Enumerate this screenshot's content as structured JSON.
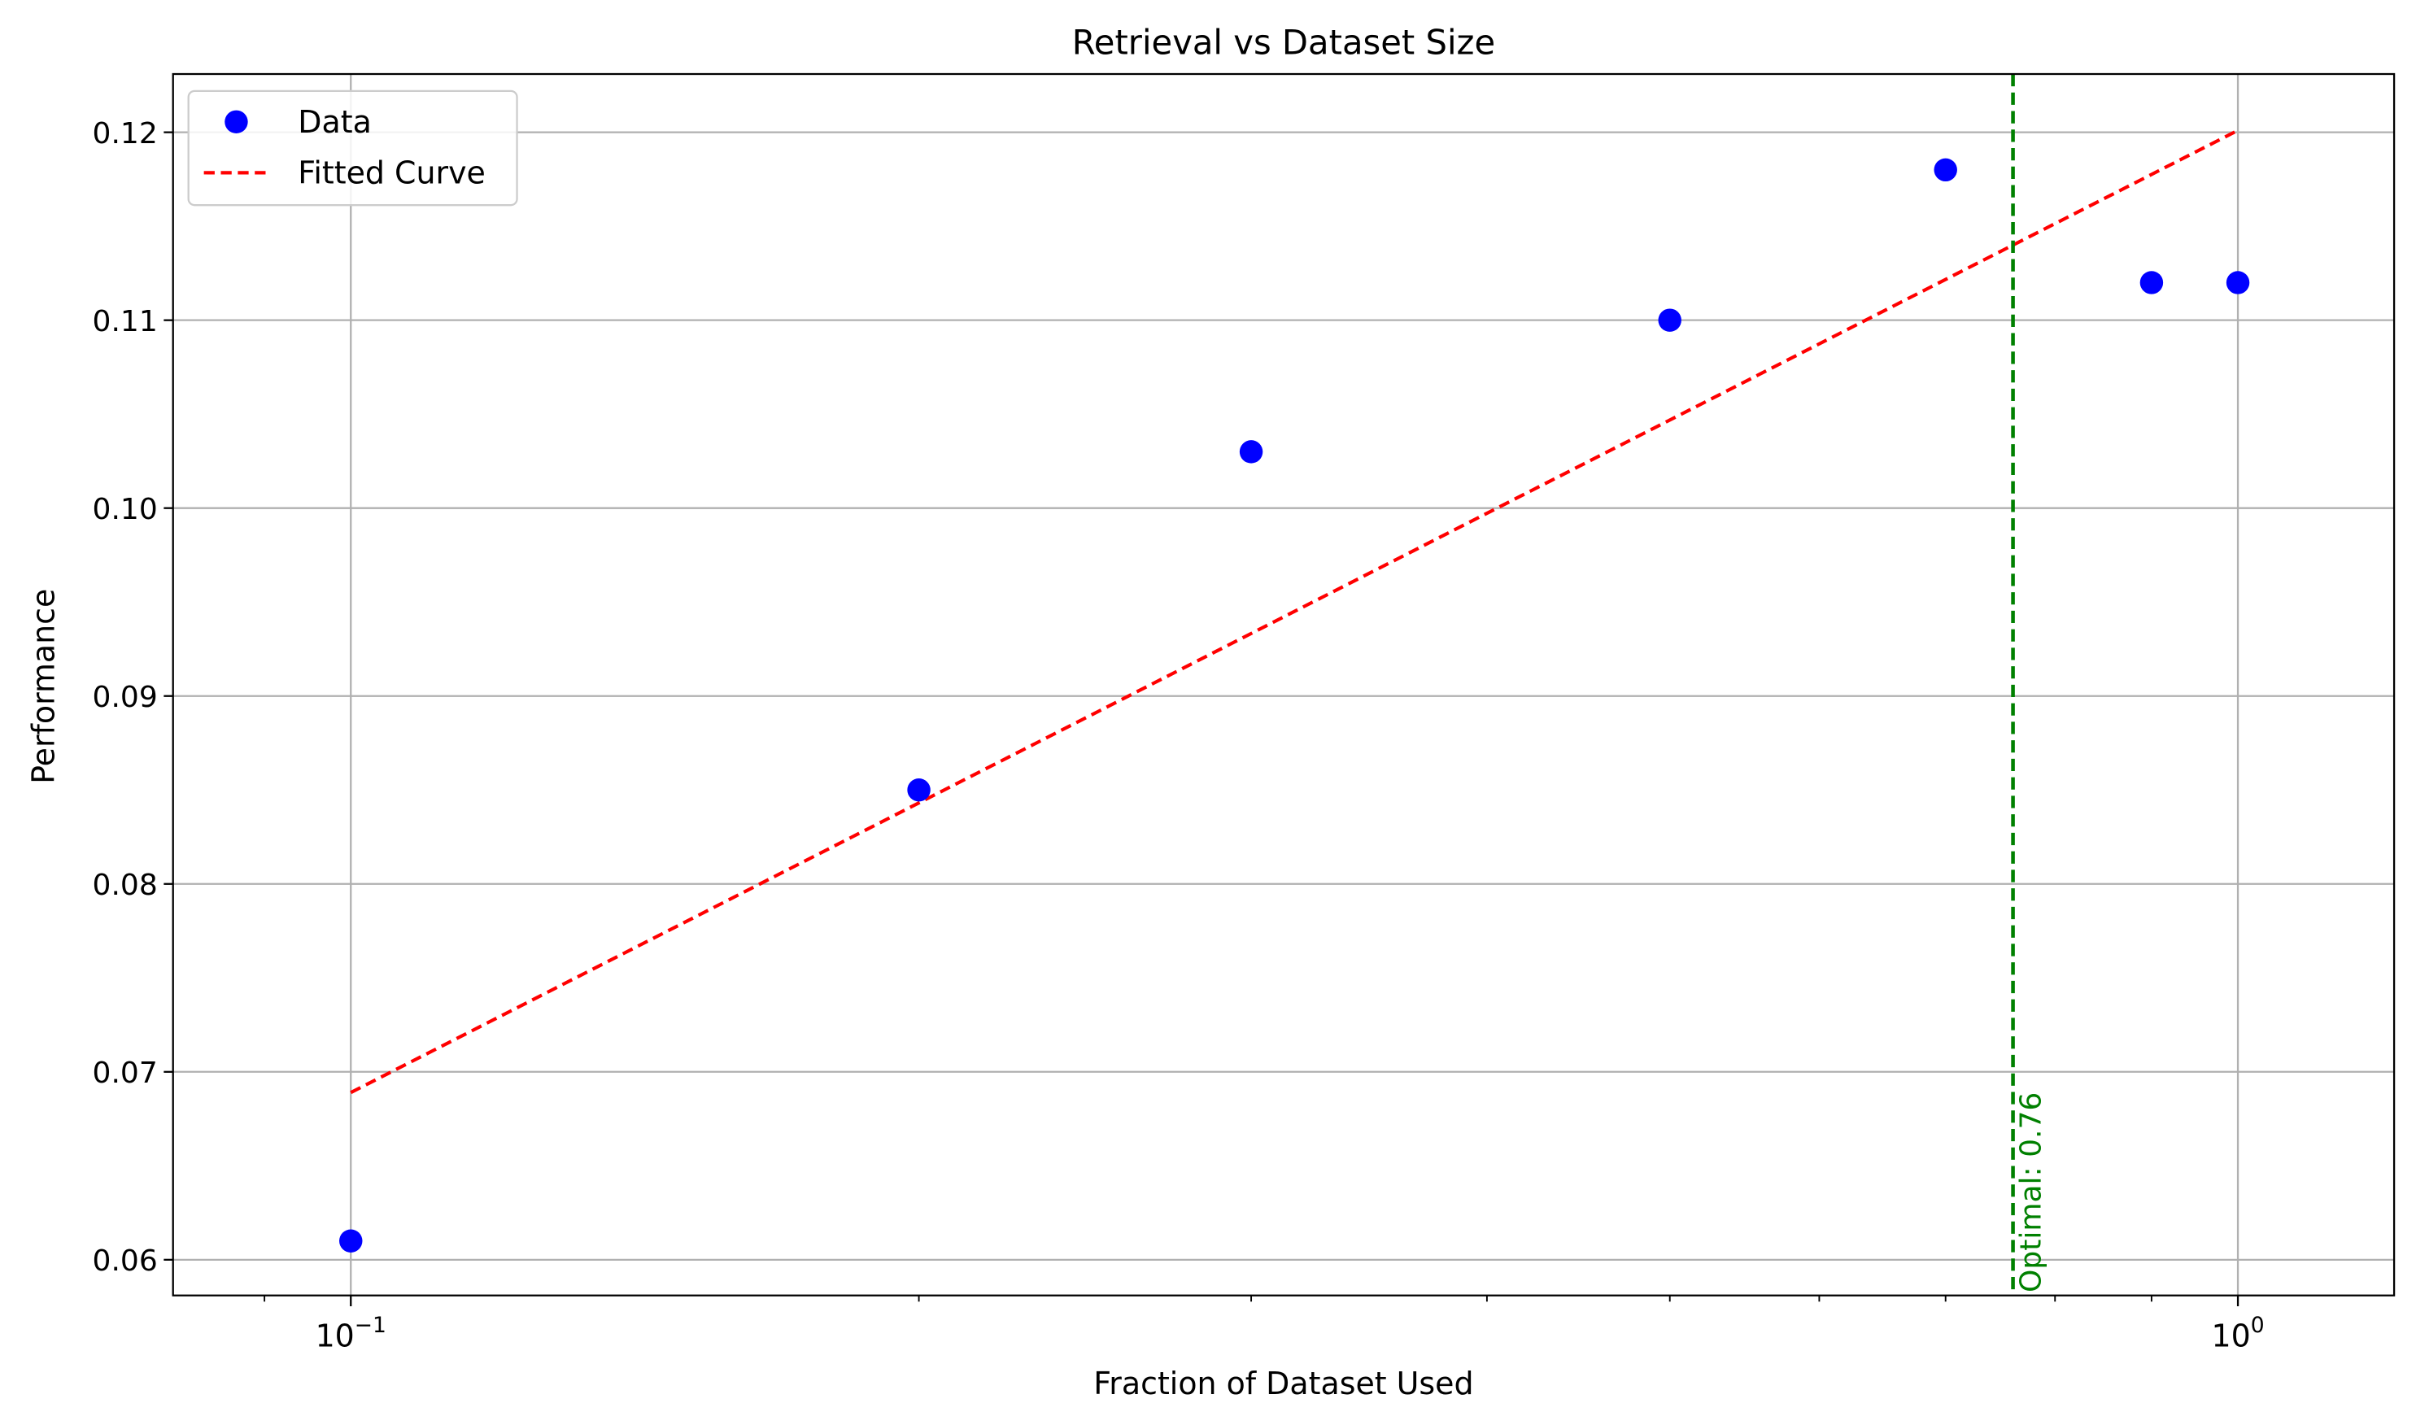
{
  "chart_data": {
    "type": "scatter",
    "title": "Retrieval vs Dataset Size",
    "xlabel": "Fraction of Dataset Used",
    "ylabel": "Performance",
    "xscale": "log",
    "xlim": [
      0.0805,
      1.21
    ],
    "ylim": [
      0.0581,
      0.1231
    ],
    "grid": true,
    "legend_position": "top-left",
    "x_tick_labels": [
      {
        "value": 0.1,
        "base": "10",
        "exp": "−1"
      },
      {
        "value": 1.0,
        "base": "10",
        "exp": "0"
      }
    ],
    "y_ticks": [
      0.06,
      0.07,
      0.08,
      0.09,
      0.1,
      0.11,
      0.12
    ],
    "y_tick_labels": [
      "0.06",
      "0.07",
      "0.08",
      "0.09",
      "0.10",
      "0.11",
      "0.12"
    ],
    "series": [
      {
        "name": "Data",
        "kind": "scatter",
        "color": "#0000ff",
        "x": [
          0.1,
          0.2,
          0.3,
          0.5,
          0.7,
          0.9,
          1.0
        ],
        "y": [
          0.061,
          0.085,
          0.103,
          0.11,
          0.118,
          0.112,
          0.112
        ]
      },
      {
        "name": "Fitted Curve",
        "kind": "line",
        "style": "dashed",
        "color": "#ff0000",
        "x": [
          0.1,
          1.0
        ],
        "y": [
          0.0689,
          0.1201
        ]
      }
    ],
    "annotations": [
      {
        "type": "vline",
        "x": 0.76,
        "color": "#008000",
        "style": "dashed",
        "label": "Optimal: 0.76"
      }
    ]
  }
}
